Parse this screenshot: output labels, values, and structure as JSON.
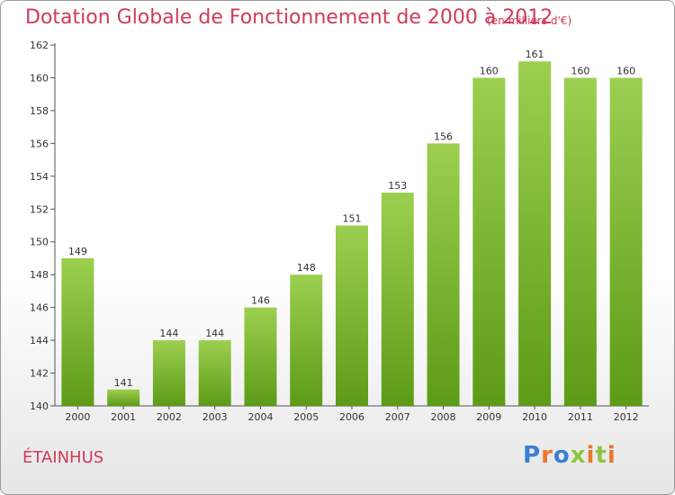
{
  "title": "Dotation Globale de Fonctionnement de 2000 à 2012",
  "subtitle": "(en milliers d'€)",
  "commune": "ÉTAINHUS",
  "logo": {
    "text": "Proxiti",
    "colors": [
      "#3a7fd5",
      "#e8792b",
      "#3a7fd5",
      "#8cc63f",
      "#e8792b",
      "#8cc63f",
      "#e8792b"
    ]
  },
  "colors": {
    "bar_top": "#9ccf50",
    "bar_bottom": "#5d9b17",
    "title": "#d03a5a"
  },
  "chart_data": {
    "type": "bar",
    "title": "Dotation Globale de Fonctionnement de 2000 à 2012",
    "subtitle": "(en milliers d'€)",
    "xlabel": "",
    "ylabel": "",
    "categories": [
      "2000",
      "2001",
      "2002",
      "2003",
      "2004",
      "2005",
      "2006",
      "2007",
      "2008",
      "2009",
      "2010",
      "2011",
      "2012"
    ],
    "values": [
      149,
      141,
      144,
      144,
      146,
      148,
      151,
      153,
      156,
      160,
      161,
      160,
      160
    ],
    "ylim": [
      140,
      162
    ],
    "yticks": [
      140,
      142,
      144,
      146,
      148,
      150,
      152,
      154,
      156,
      158,
      160,
      162
    ],
    "grid": false,
    "legend": "none"
  }
}
